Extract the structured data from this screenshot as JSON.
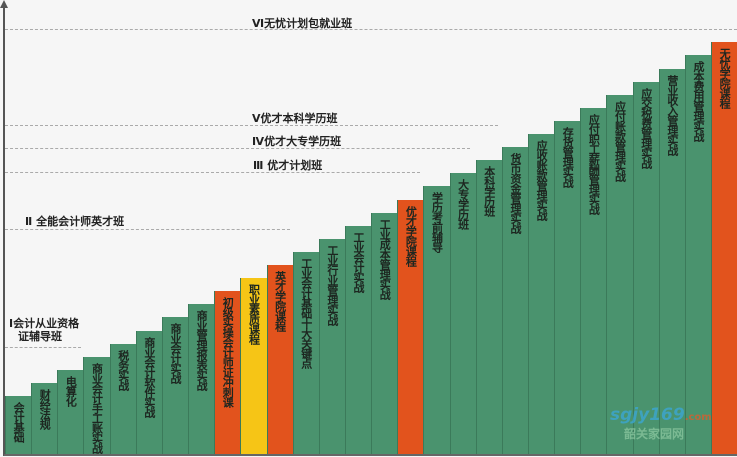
{
  "colors": {
    "green": "#4a936e",
    "orange": "#e2531d",
    "yellow": "#f6c516"
  },
  "levels": [
    {
      "label": "Ⅰ会计从业资格\n证辅导班",
      "line1": "Ⅰ会计从业资格",
      "line2": "证辅导班"
    },
    {
      "label": "Ⅱ 全能会计师英才班"
    },
    {
      "label": "Ⅲ 优才计划班"
    },
    {
      "label": "Ⅳ优才大专学历班"
    },
    {
      "label": "Ⅴ优才本科学历班"
    },
    {
      "label": "Ⅵ无忧计划包就业班"
    }
  ],
  "bars": [
    {
      "label": "会计基础",
      "color": "green"
    },
    {
      "label": "财经法规",
      "color": "green"
    },
    {
      "label": "电算化",
      "color": "green"
    },
    {
      "label": "商业会计手工账实战",
      "color": "green"
    },
    {
      "label": "税务实战",
      "color": "green"
    },
    {
      "label": "商业会计软件实战",
      "color": "green"
    },
    {
      "label": "商业会计实战",
      "color": "green"
    },
    {
      "label": "商业管理报表实战",
      "color": "green"
    },
    {
      "label": "初级实操会计师证冲刺课",
      "color": "orange"
    },
    {
      "label": "职业素质课程",
      "color": "yellow"
    },
    {
      "label": "英才学院课程",
      "color": "orange"
    },
    {
      "label": "工业会计基础十大关键点",
      "color": "green"
    },
    {
      "label": "工业行业管理实战",
      "color": "green"
    },
    {
      "label": "工业会计实战",
      "color": "green"
    },
    {
      "label": "工业成本管理实战",
      "color": "green"
    },
    {
      "label": "优才学院课程",
      "color": "orange"
    },
    {
      "label": "学历考前辅导",
      "color": "green"
    },
    {
      "label": "大专学历班",
      "color": "green"
    },
    {
      "label": "本科学历班",
      "color": "green"
    },
    {
      "label": "货币资金管理实战",
      "color": "green"
    },
    {
      "label": "应收账款管理实战",
      "color": "green"
    },
    {
      "label": "存货管理实战",
      "color": "green"
    },
    {
      "label": "应付职工薪酬管理实战",
      "color": "green"
    },
    {
      "label": "应付账款管理实战",
      "color": "green"
    },
    {
      "label": "应交税费管理实战",
      "color": "green"
    },
    {
      "label": "营业收入管理实战",
      "color": "green"
    },
    {
      "label": "成本费用管理实战",
      "color": "green"
    },
    {
      "label": "无忧学院课程",
      "color": "orange"
    }
  ],
  "watermark": {
    "text": "sgjy169",
    "suffix": ".com",
    "cn": "韶关家园网"
  }
}
